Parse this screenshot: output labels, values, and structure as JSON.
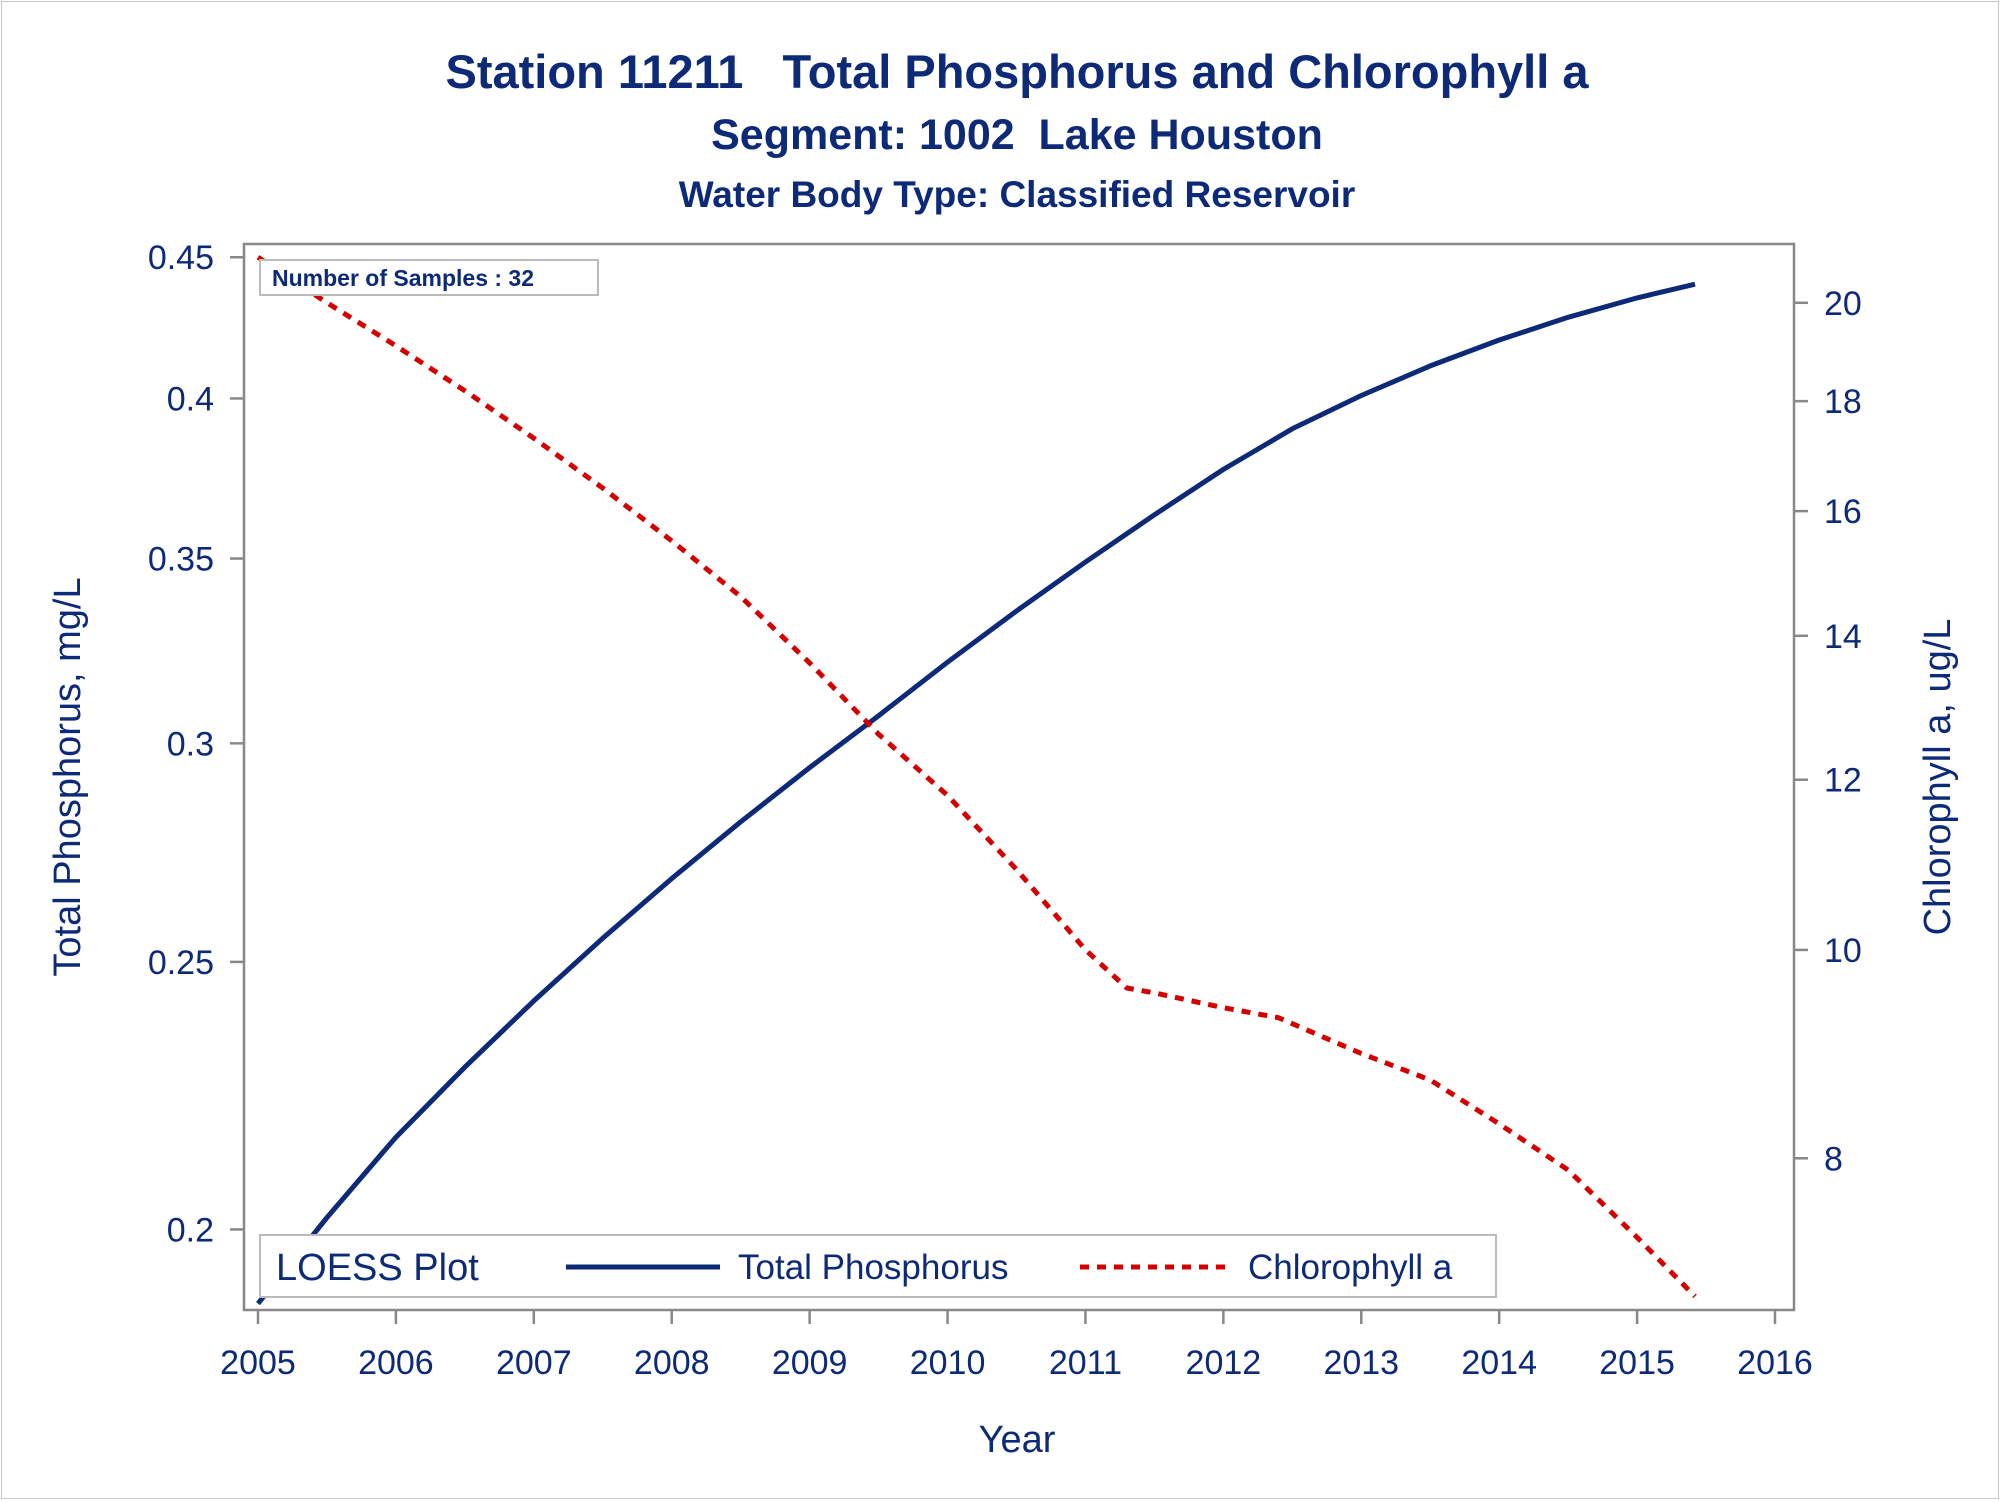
{
  "colors": {
    "axis": "#888888",
    "text": "#0d2a78",
    "total_phosphorus": "#0d2a78",
    "chlorophyll_a": "#d40000"
  },
  "inset_text": "Number of Samples : 32",
  "legend": {
    "title": "LOESS Plot",
    "items": [
      "Total Phosphorus",
      "Chlorophyll a"
    ]
  },
  "chart_data": {
    "type": "line",
    "title": "Station 11211   Total Phosphorus and Chlorophyll a",
    "subtitle": "Segment: 1002  Lake Houston",
    "subtitle2": "Water Body Type: Classified Reservoir",
    "xlabel": "Year",
    "ylabel": "Total Phosphorus, mg/L",
    "y2label": "Chlorophyll a, ug/L",
    "xlim": [
      2005,
      2016
    ],
    "ylim": [
      0.187,
      0.455
    ],
    "y2lim": [
      6.8,
      21.3
    ],
    "yscale": "log",
    "y2scale": "log",
    "xticks": [
      "2005",
      "2006",
      "2007",
      "2008",
      "2009",
      "2010",
      "2011",
      "2012",
      "2013",
      "2014",
      "2015",
      "2016"
    ],
    "yticks": [
      "0.2",
      "0.25",
      "0.3",
      "0.35",
      "0.4",
      "0.45"
    ],
    "y2ticks": [
      "8",
      "10",
      "12",
      "14",
      "16",
      "18",
      "20"
    ],
    "grid": false,
    "legend_position": "bottom-inside",
    "series": [
      {
        "name": "Total Phosphorus",
        "axis": "left",
        "style": "solid",
        "x": [
          2005.0,
          2005.5,
          2006.0,
          2006.5,
          2007.0,
          2007.5,
          2008.0,
          2008.5,
          2009.0,
          2009.5,
          2010.0,
          2010.5,
          2011.0,
          2011.5,
          2012.0,
          2012.5,
          2013.0,
          2013.5,
          2014.0,
          2014.5,
          2015.0,
          2015.42
        ],
        "values": [
          0.188,
          0.202,
          0.216,
          0.229,
          0.242,
          0.255,
          0.268,
          0.281,
          0.294,
          0.307,
          0.321,
          0.335,
          0.349,
          0.363,
          0.377,
          0.39,
          0.401,
          0.411,
          0.42,
          0.428,
          0.435,
          0.44
        ]
      },
      {
        "name": "Chlorophyll a",
        "axis": "right",
        "style": "dashed",
        "x": [
          2005.0,
          2005.5,
          2006.0,
          2006.5,
          2007.0,
          2007.5,
          2008.0,
          2008.5,
          2009.0,
          2009.5,
          2010.0,
          2010.5,
          2011.0,
          2011.3,
          2011.5,
          2012.0,
          2012.4,
          2013.0,
          2013.5,
          2014.0,
          2014.5,
          2015.0,
          2015.42
        ],
        "values": [
          21.0,
          20.0,
          19.1,
          18.2,
          17.3,
          16.4,
          15.5,
          14.6,
          13.6,
          12.6,
          11.8,
          10.9,
          10.0,
          9.6,
          9.55,
          9.4,
          9.3,
          8.95,
          8.7,
          8.3,
          7.9,
          7.35,
          6.9
        ]
      }
    ]
  }
}
